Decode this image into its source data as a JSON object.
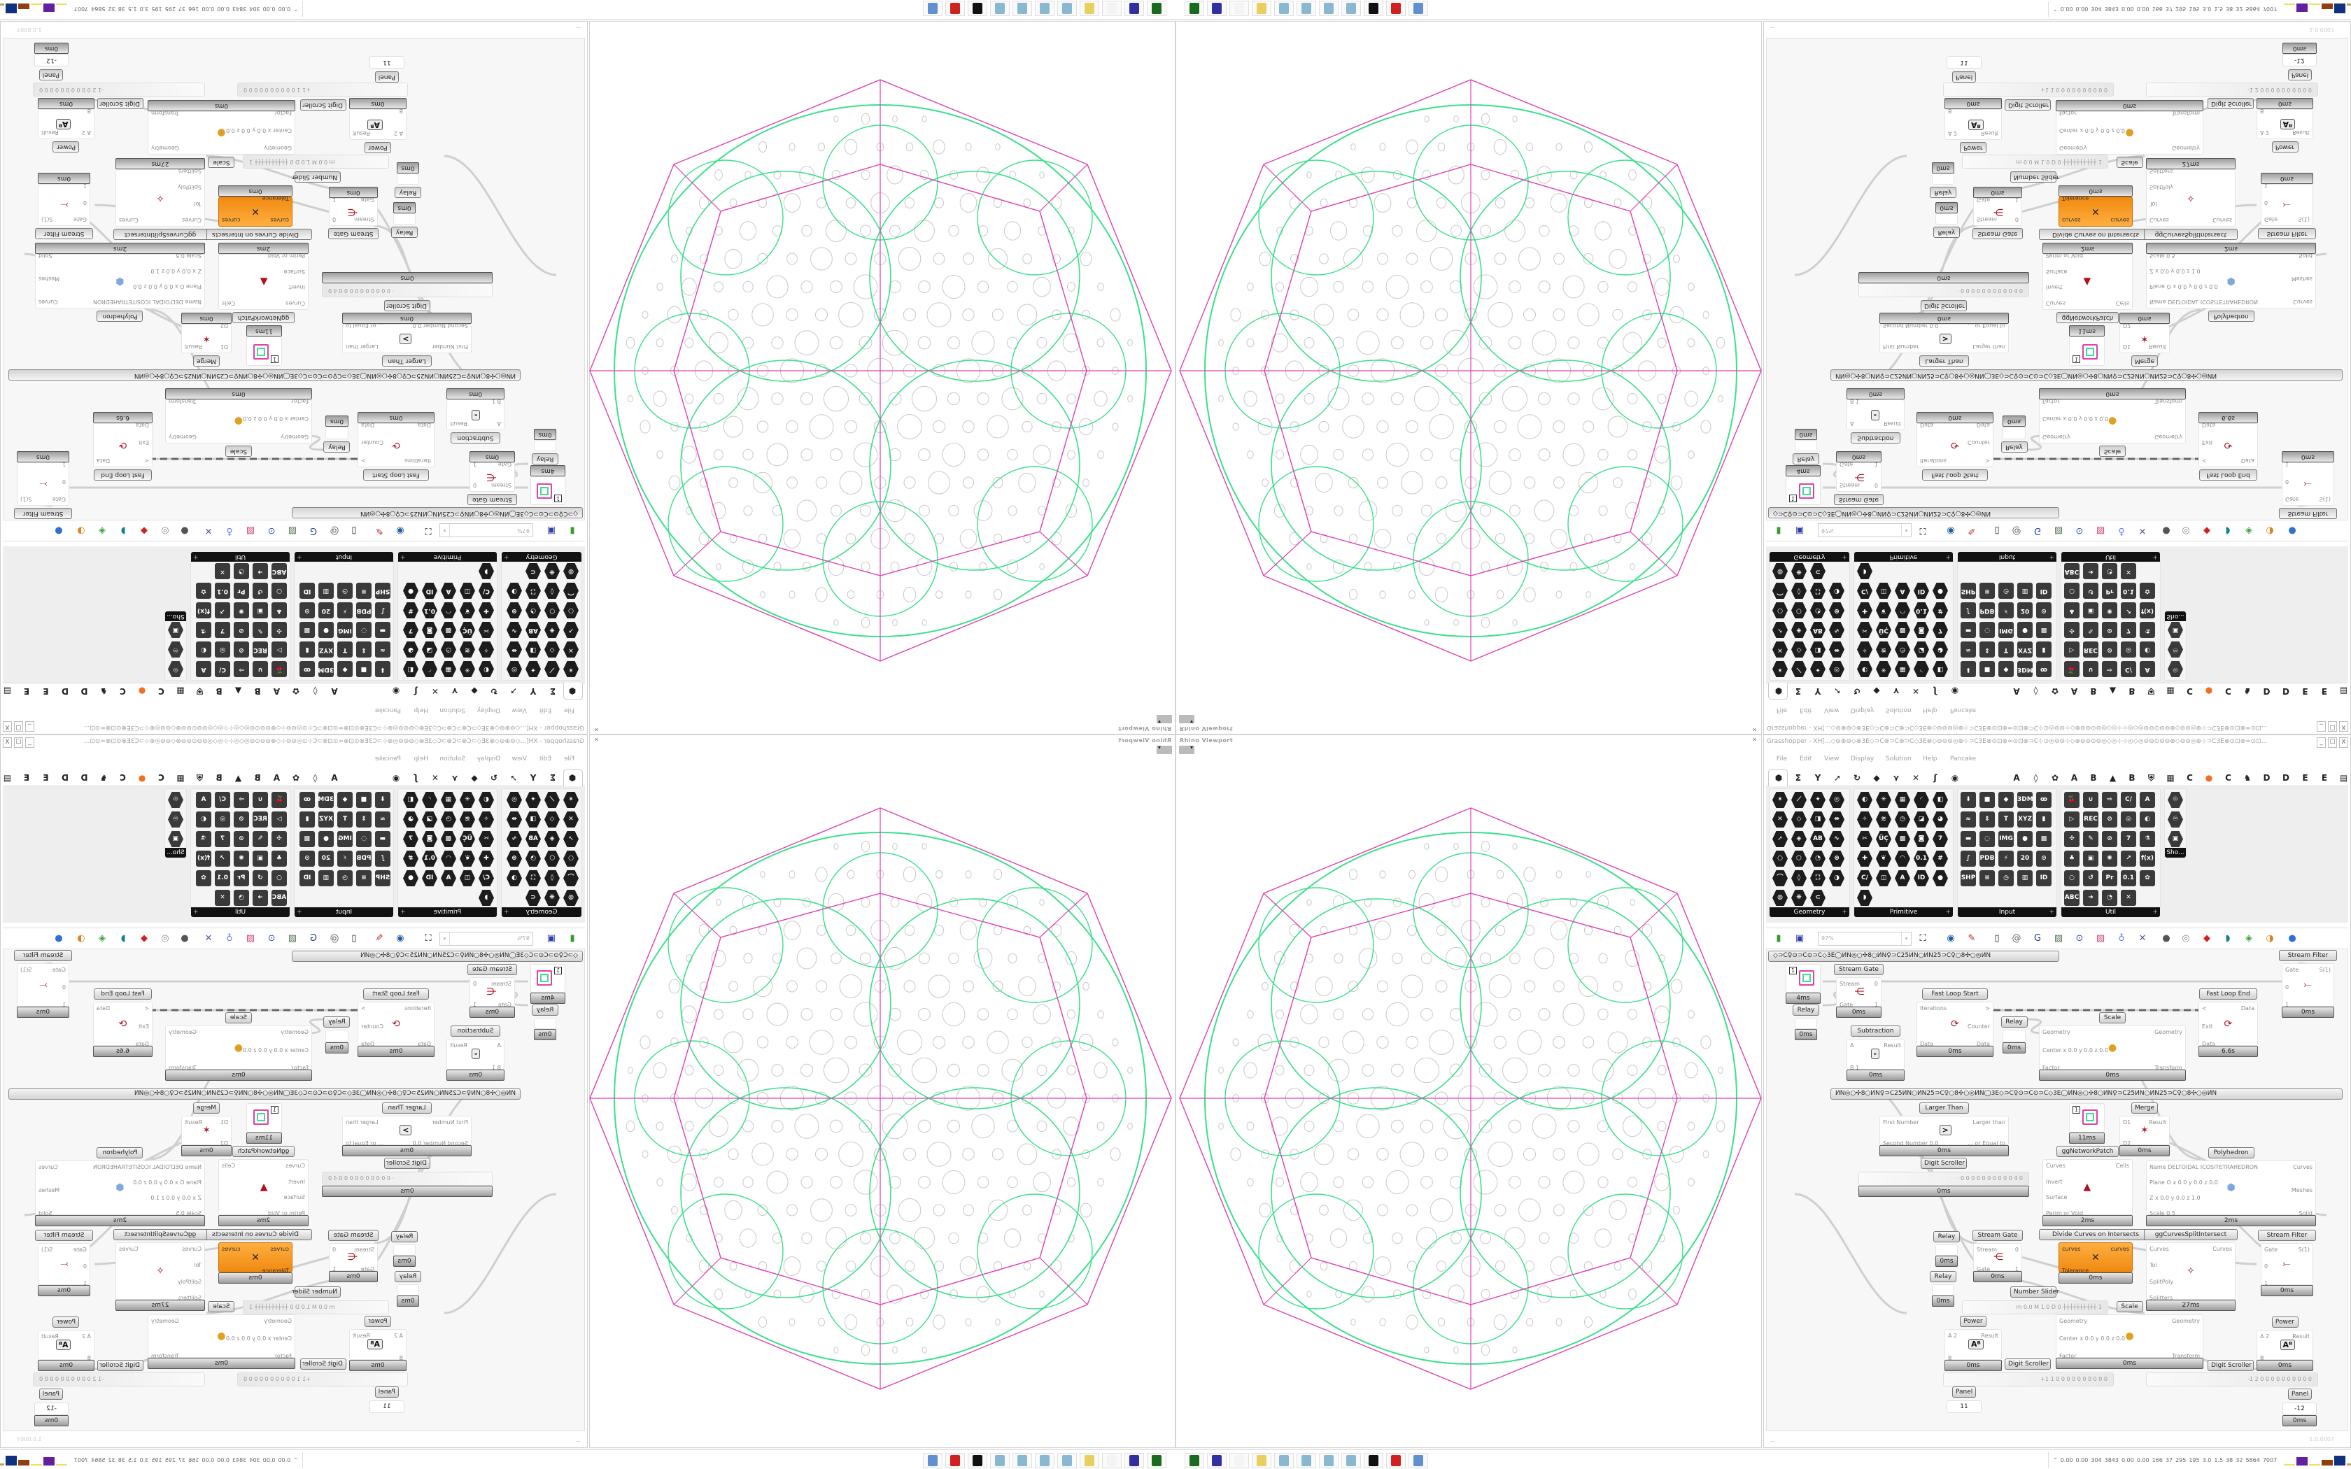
{
  "viewport": {
    "title": "Rhino Viewport",
    "close_icon": "close-icon",
    "colors": {
      "outline": "#e040b0",
      "pattern": "#3be08a",
      "circles": "#c8c8c8"
    }
  },
  "taskbar": {
    "icons": [
      "terminal",
      "floppy-64",
      "blank",
      "folder",
      "notepad",
      "notepad",
      "notepad",
      "notepad",
      "rhino",
      "red-gear",
      "calculator"
    ],
    "stats": [
      "0.00",
      "0.00",
      "304",
      "3843",
      "0.00",
      "0.00",
      "166",
      "37",
      "295",
      "195",
      "3.0",
      "1.5",
      "38",
      "32",
      "5864",
      "7007"
    ]
  },
  "gh": {
    "title": "Grasshopper - XH[...◇⊖⊕⊖◇⊗3E◇⊃C⊗⊃C⊗⊃C◇3E⊗◇⊖⊖⊖◎⊕⊹⊃C3E⊗⊙⊡⊗∞⊙⊡⊗⊃C⊹⊙◎⊖⊖⊹◇⊗⊖⊖⊙⊖◎◇◎⊹⊹◎◇◎⊖⊖⊙⊖⊖⊗◇⊖⊖◎⊕⊹⊃C3E⊗⊙⊡⊗∞⊙⊡...",
    "window_buttons": [
      "_",
      "☐",
      "X"
    ],
    "menu": [
      "File",
      "Edit",
      "View",
      "Display",
      "Solution",
      "Help",
      "Pancake"
    ],
    "tabs": [
      "⬢",
      "Σ",
      "Y",
      "➚",
      "↻",
      "◆",
      "⋎",
      "✕",
      "ʃ",
      "◉",
      "A",
      "◊",
      "✿",
      "A",
      "B",
      "▲",
      "B",
      "⛨",
      "▦",
      "C",
      "●",
      "C",
      "♞",
      "D",
      "D",
      "E",
      "E",
      "▤"
    ],
    "tab_icon_names": [
      "params",
      "maths",
      "sets",
      "vector",
      "curve",
      "surface",
      "mesh",
      "intersect",
      "transform",
      "display",
      "addon-a1",
      "addon-a2",
      "addon-a3",
      "addon-a4",
      "addon-b1",
      "addon-b2",
      "addon-b3",
      "addon-b4",
      "addon-c1",
      "addon-c2",
      "addon-c3",
      "addon-c4",
      "addon-d1",
      "addon-d2",
      "addon-d3",
      "addon-e1",
      "addon-e2",
      "addon-e3"
    ],
    "panels": [
      {
        "label": "Geometry",
        "icons": [
          "✶",
          "⟋",
          "✦",
          "◎",
          "✕",
          "◇",
          "◨",
          "⇹",
          "➚",
          "◈",
          "AB",
          "∿",
          "○",
          "⬡",
          "◔",
          "⊛",
          "⌒",
          "◊",
          "⛶",
          "◑",
          "◍",
          "❋",
          "⊂"
        ]
      },
      {
        "label": "Primitive",
        "icons": [
          "◐",
          "✳",
          "▦",
          "◜",
          "◧",
          "✧",
          "≋",
          "◷",
          "◪",
          "◕",
          "✂",
          "ÜÇ",
          "▩",
          "◙",
          "7",
          "✚",
          "❦",
          "◠",
          "0.1",
          "#",
          "C/",
          "◫",
          "A",
          "ID",
          "●",
          "◗"
        ]
      },
      {
        "label": "Input",
        "icons": [
          "⬇",
          "■",
          "◆",
          "3DM",
          "ꝏ",
          "≈",
          "⇕",
          "T",
          "XYZ",
          "▮",
          "▬",
          "◌",
          "IMG",
          "●",
          "▩",
          "∫",
          "PDB",
          "⚡",
          "20",
          "⊙",
          "SHP",
          "≡",
          "◷",
          "▥",
          "ID"
        ]
      },
      {
        "label": "Util",
        "icons": [
          "🍒",
          "∪",
          "⇨",
          "C/",
          "A",
          "▷",
          "REC",
          "⊘",
          "◎",
          "◐",
          "✣",
          "✎",
          "⊘",
          "7",
          "⚗",
          "♣",
          "▣",
          "✺",
          "↗",
          "f(x)",
          "○",
          "↺",
          "Pr",
          "0.1",
          "✿",
          "ABC",
          "➜",
          "◔",
          "✕"
        ]
      },
      {
        "label": "Sho...",
        "icons": [
          "♾",
          "♾",
          "▣"
        ]
      }
    ],
    "toolbar": {
      "zoom": "97%",
      "zoom_dropdown": "▾",
      "icons": [
        "new-file",
        "save",
        "zoom-extents",
        "preview",
        "sketch",
        "cluster",
        "at",
        "gha",
        "canvas-image",
        "search",
        "package",
        "bulb",
        "wires",
        "bulb-grey",
        "links",
        "red-box",
        "tube",
        "green-leaf",
        "orange-sphere",
        "blue-sphere"
      ]
    },
    "groups": [
      "◇⊃C♀⊙⊃C⊙⊃C◇3E◯ИN◎○✣8○ИN♀⊃C25ИN○ИN25⊃C♀○8✣○◎ИN",
      "ИN◎○✣8○ИN♀⊃C25ИN○ИN25⊃C♀○8✣○◎ИN◯3E◇⊃C♀⊙⊃C⊙⊃C◇3E◯ИN◎○✣8○ИN♀⊃C25ИN○ИN25⊃C♀○8✣○◎ИN"
    ],
    "components": [
      {
        "label": "",
        "ins": [
          "",
          ""
        ],
        "outs": [
          ""
        ],
        "time": "4ms",
        "kind": "preview",
        "value": "1"
      },
      {
        "label": "Stream Gate",
        "ins": [
          "Stream",
          "Gate"
        ],
        "outs": [
          "0",
          "1"
        ],
        "time": "0ms",
        "kind": "gate"
      },
      {
        "label": "Relay",
        "ins": [],
        "outs": [],
        "time": "0ms",
        "kind": "relay"
      },
      {
        "label": "Subtraction",
        "ins": [
          "A",
          "B 1"
        ],
        "outs": [
          "Result"
        ],
        "time": "0ms",
        "kind": "math",
        "symbol": "-"
      },
      {
        "label": "Fast Loop Start",
        "ins": [
          "Iterations",
          "Data"
        ],
        "outs": [
          ">",
          "Counter",
          "Data"
        ],
        "time": "0ms",
        "kind": "loop"
      },
      {
        "label": "Relay",
        "ins": [],
        "outs": [],
        "time": "0ms",
        "kind": "relay"
      },
      {
        "label": "Scale",
        "ins": [
          "Geometry",
          "Center x 0.0 y 0.0 z 0.0",
          "Factor"
        ],
        "outs": [
          "Geometry",
          "Transform"
        ],
        "time": "0ms",
        "kind": "scale"
      },
      {
        "label": "Fast Loop End",
        "ins": [
          "<",
          "Exit",
          "Data"
        ],
        "outs": [
          "Data"
        ],
        "time": "6.6s",
        "kind": "loop"
      },
      {
        "label": "Stream Filter",
        "ins": [
          "Gate",
          "0",
          "1"
        ],
        "outs": [
          "S(1)"
        ],
        "time": "0ms",
        "kind": "filter"
      },
      {
        "label": "Larger Than",
        "ins": [
          "First Number",
          "Second Number 0.0"
        ],
        "outs": [
          "Larger than",
          "... or Equal to"
        ],
        "time": "0ms",
        "kind": "math",
        "symbol": ">"
      },
      {
        "label": "",
        "ins": [
          "",
          ""
        ],
        "outs": [
          ""
        ],
        "time": "11ms",
        "kind": "preview",
        "value": "1"
      },
      {
        "label": "Merge",
        "ins": [
          "D1",
          "D2"
        ],
        "outs": [
          "Result"
        ],
        "time": "0ms",
        "kind": "merge"
      },
      {
        "label": "ggNetworkPatch",
        "ins": [
          "Curves",
          "Invert",
          "Surface",
          "Perim or Void"
        ],
        "outs": [
          "Cells"
        ],
        "time": "2ms",
        "kind": "patch"
      },
      {
        "label": "Polyhedron",
        "ins": [
          "Name DELTOIDAL ICOSITETRAHEDRON",
          "Plane  O x 0.0 y 0.0 z 0.0",
          "Z x 0.0 y 0.0 z 1.0",
          "Scale 0.5"
        ],
        "outs": [
          "Curves",
          "Meshes",
          "Solid"
        ],
        "time": "2ms",
        "kind": "poly"
      },
      {
        "label": "Relay",
        "ins": [],
        "outs": [],
        "time": "0ms",
        "kind": "relay"
      },
      {
        "label": "Relay",
        "ins": [],
        "outs": [],
        "time": "0ms",
        "kind": "relay"
      },
      {
        "label": "Stream Gate",
        "ins": [
          "Stream",
          "Gate"
        ],
        "outs": [
          "0",
          "1"
        ],
        "time": "0ms",
        "kind": "gate"
      },
      {
        "label": "Divide Curves on Intersects",
        "ins": [
          "curves",
          "Tolerance"
        ],
        "outs": [
          "curves"
        ],
        "time": "0ms",
        "kind": "orange"
      },
      {
        "label": "ggCurvesSplitIntersect",
        "ins": [
          "Curves",
          "Tol",
          "SplitPoly",
          "Splitters"
        ],
        "outs": [
          "Curves"
        ],
        "time": "27ms",
        "kind": "split"
      },
      {
        "label": "Stream Filter",
        "ins": [
          "Gate",
          "0",
          "1"
        ],
        "outs": [
          "S(1)"
        ],
        "time": "0ms",
        "kind": "filter"
      },
      {
        "label": "Power",
        "ins": [
          "A 2",
          "B"
        ],
        "outs": [
          "Result"
        ],
        "time": "0ms",
        "kind": "math",
        "symbol": "Aᴮ"
      },
      {
        "label": "Scale",
        "ins": [
          "Geometry",
          "Center x 0.0 y 0.0 z 0.0",
          "Factor"
        ],
        "outs": [
          "Geometry",
          "Transform"
        ],
        "time": "0ms",
        "kind": "scale"
      },
      {
        "label": "Power",
        "ins": [
          "A 2",
          "B"
        ],
        "outs": [
          "Result"
        ],
        "time": "0ms",
        "kind": "math",
        "symbol": "Aᴮ"
      }
    ],
    "sliders": [
      {
        "label": "Digit Scroller",
        "value": "· 0 0 0 0 0 0 0 0 0 0 4 0",
        "time": "0ms"
      },
      {
        "label": "Number Slider",
        "value": "m 0.0  M 1.0  D 0  ┼┼┼┼┼┼┼┼┼┼ 1",
        "time": ""
      },
      {
        "label": "Digit Scroller",
        "value": "+1 1 0 0 0 0 0 0 0 0 0 0",
        "time": ""
      },
      {
        "label": "Digit Scroller",
        "value": "-1 2 0 0 0 0 0 0 0 0 0 0",
        "time": ""
      }
    ],
    "panels_canvas": [
      {
        "label": "Panel",
        "value": "11",
        "time": ""
      },
      {
        "label": "Panel",
        "value": "-12",
        "time": "0ms"
      }
    ],
    "status": {
      "left": "...",
      "version": "1.0.0007"
    }
  }
}
